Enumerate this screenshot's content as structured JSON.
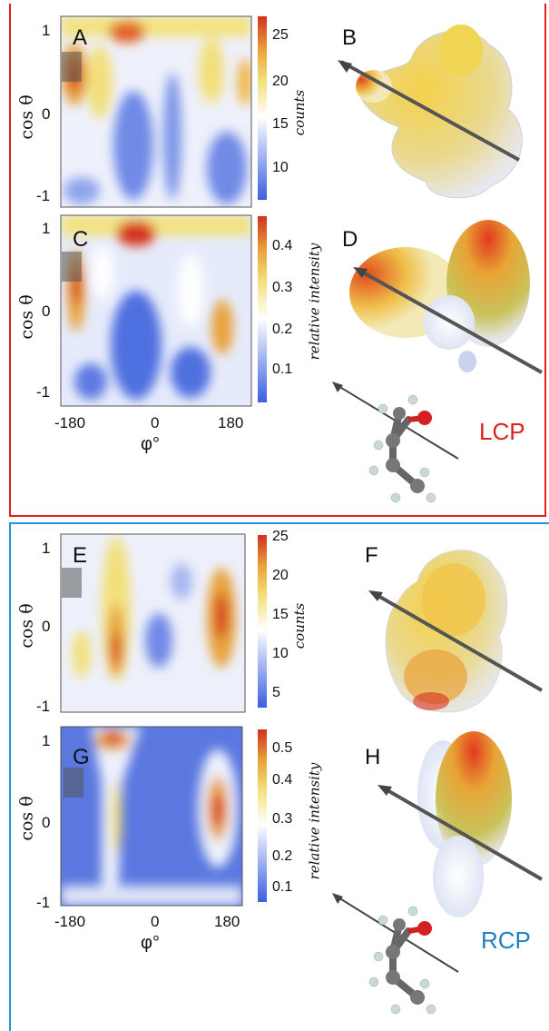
{
  "panels": {
    "A": "A",
    "B": "B",
    "C": "C",
    "D": "D",
    "E": "E",
    "F": "F",
    "G": "G",
    "H": "H"
  },
  "axes": {
    "ylabel": "cos θ",
    "xlabel": "φ°",
    "y_ticks": [
      "1",
      "0",
      "-1"
    ],
    "x_ticks": [
      "-180",
      "0",
      "180"
    ]
  },
  "colorbars": {
    "A": {
      "label": "counts",
      "ticks": [
        "25",
        "20",
        "15",
        "10"
      ]
    },
    "C": {
      "label": "relative intensity",
      "ticks": [
        "0.4",
        "0.3",
        "0.2",
        "0.1"
      ]
    },
    "E": {
      "label": "counts",
      "ticks": [
        "25",
        "20",
        "15",
        "10",
        "5"
      ]
    },
    "G": {
      "label": "relative intensity",
      "ticks": [
        "0.5",
        "0.4",
        "0.3",
        "0.2",
        "0.1"
      ]
    }
  },
  "labels": {
    "lcp": "LCP",
    "rcp": "RCP"
  },
  "colors": {
    "lcp": "#e0201c",
    "rcp": "#1f7fc4",
    "colormap": [
      "#3b5fdc",
      "#ffffff",
      "#f3e07a",
      "#e8a23a",
      "#d7301f"
    ]
  }
}
